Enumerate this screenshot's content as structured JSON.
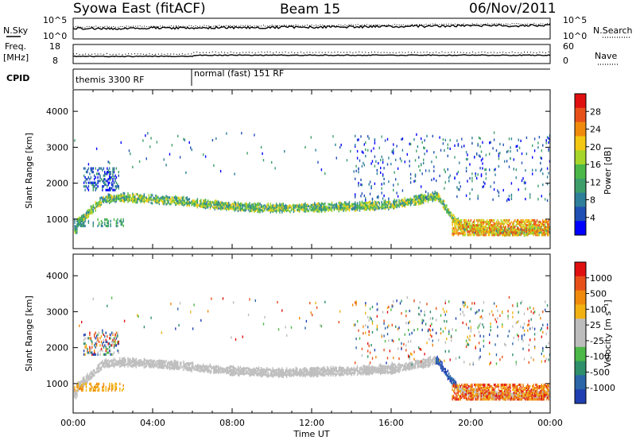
{
  "header": {
    "station": "Syowa East (fitACF)",
    "beam": "Beam 15",
    "date": "06/Nov/2011"
  },
  "panels": {
    "noise": {
      "left_label": "N.Sky",
      "right_label": "N.Search",
      "left_ticks": [
        "10^5",
        "10^0"
      ],
      "right_ticks": [
        "10^5",
        "10^0"
      ]
    },
    "freq": {
      "left_label_1": "Freq.",
      "left_label_2": "[MHz]",
      "right_label": "Nave",
      "left_ticks": [
        "18",
        "8"
      ],
      "right_ticks": [
        "60",
        "0"
      ]
    },
    "cpid": {
      "label": "CPID",
      "segments": [
        {
          "text": "themis 3300 RF",
          "start_hour": 0
        },
        {
          "text": "normal (fast) 151 RF",
          "start_hour": 6.0
        }
      ]
    }
  },
  "power_panel": {
    "ylabel": "Slant Range [km]",
    "yticks": [
      "4000",
      "3000",
      "2000",
      "1000"
    ],
    "colorbar_label": "Power [dB]",
    "colorbar_ticks": [
      "28",
      "24",
      "20",
      "16",
      "12",
      "8",
      "4"
    ],
    "colors": [
      "#0000ff",
      "#1f4eb4",
      "#2e7f9a",
      "#3e9e6a",
      "#4cb848",
      "#a6d62a",
      "#f2c812",
      "#f08a0c",
      "#e8501a",
      "#e01010"
    ]
  },
  "velocity_panel": {
    "ylabel": "Slant Range [km]",
    "yticks": [
      "4000",
      "3000",
      "2000",
      "1000"
    ],
    "colorbar_label": "Velocity [m s⁻¹]",
    "colorbar_ticks": [
      "1000",
      "500",
      "100",
      "25",
      "-25",
      "-100",
      "-500",
      "-1000"
    ],
    "colors": [
      "#1f3fb0",
      "#2a66a8",
      "#2e8f6a",
      "#4cb848",
      "#bdbdbd",
      "#bdbdbd",
      "#f2b212",
      "#f08a0c",
      "#e8501a",
      "#e01010"
    ]
  },
  "xaxis": {
    "ticks": [
      "00:00",
      "04:00",
      "08:00",
      "12:00",
      "16:00",
      "20:00",
      "00:00"
    ],
    "label": "Time UT"
  },
  "chart_data": {
    "type": "heatmap",
    "x_range_hours": [
      0,
      24
    ],
    "y_range_km": [
      180,
      4600
    ],
    "power_layer_km": [
      [
        0.2,
        900
      ],
      [
        1.0,
        1300
      ],
      [
        1.5,
        1550
      ],
      [
        2.5,
        1600
      ],
      [
        4.0,
        1550
      ],
      [
        5.5,
        1500
      ],
      [
        6.0,
        1450
      ],
      [
        8.0,
        1350
      ],
      [
        10.0,
        1300
      ],
      [
        12.0,
        1320
      ],
      [
        14.0,
        1350
      ],
      [
        16.0,
        1400
      ],
      [
        17.5,
        1550
      ],
      [
        18.3,
        1650
      ],
      [
        19.0,
        1100
      ],
      [
        19.5,
        800
      ],
      [
        20.5,
        700
      ],
      [
        22.0,
        650
      ],
      [
        24.0,
        700
      ]
    ]
  }
}
